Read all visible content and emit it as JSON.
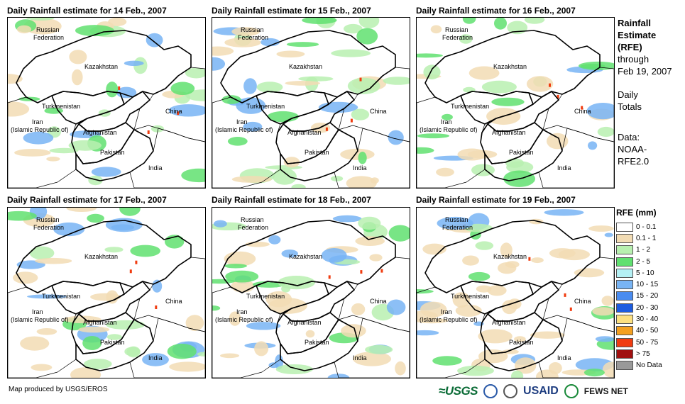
{
  "panels": [
    {
      "title": "Daily Rainfall estimate for 14 Feb., 2007",
      "rain_level": 0.3
    },
    {
      "title": "Daily Rainfall estimate for 15 Feb., 2007",
      "rain_level": 0.4
    },
    {
      "title": "Daily Rainfall estimate for 16 Feb., 2007",
      "rain_level": 0.25
    },
    {
      "title": "Daily Rainfall estimate for 17 Feb., 2007",
      "rain_level": 0.35
    },
    {
      "title": "Daily Rainfall estimate for 18 Feb., 2007",
      "rain_level": 0.45
    },
    {
      "title": "Daily Rainfall estimate for 19 Feb., 2007",
      "rain_level": 0.6
    }
  ],
  "map_labels": {
    "russia1": "Russian",
    "russia2": "Federation",
    "kazakhstan": "Kazakhstan",
    "turkmenistan": "Turkmenistan",
    "iran1": "Iran",
    "iran2": "(Islamic Republic of)",
    "afghanistan": "Afghanistan",
    "pakistan": "Pakistan",
    "china": "China",
    "india": "India"
  },
  "side": {
    "line1": "Rainfall",
    "line2": "Estimate",
    "line3": "(RFE)",
    "line4": "through",
    "line5": "Feb 19, 2007",
    "line6": "Daily",
    "line7": "Totals",
    "line8": "Data:",
    "line9": "NOAA-",
    "line10": "RFE2.0"
  },
  "legend": {
    "title": "RFE (mm)",
    "items": [
      {
        "label": "0 - 0.1",
        "color": "#ffffff"
      },
      {
        "label": "0.1 - 1",
        "color": "#f2dcb4"
      },
      {
        "label": "1 - 2",
        "color": "#b8f0b0"
      },
      {
        "label": "2 - 5",
        "color": "#60e070"
      },
      {
        "label": "5 - 10",
        "color": "#b4f0f4"
      },
      {
        "label": "10 - 15",
        "color": "#78b4f4"
      },
      {
        "label": "15 - 20",
        "color": "#4a8cf0"
      },
      {
        "label": "20 - 30",
        "color": "#1c5ce0"
      },
      {
        "label": "30 - 40",
        "color": "#fce080"
      },
      {
        "label": "40 - 50",
        "color": "#f4a020"
      },
      {
        "label": "50 - 75",
        "color": "#f03c10"
      },
      {
        "label": "> 75",
        "color": "#a01010"
      },
      {
        "label": "No Data",
        "color": "#999999"
      }
    ]
  },
  "credit": "Map produced by USGS/EROS",
  "logos": {
    "usgs": "≈USGS",
    "usaid": "USAID",
    "fews": "FEWS NET"
  },
  "colors": {
    "tan": "#f2dcb4",
    "light_green": "#b8f0b0",
    "green": "#60e070",
    "blue": "#78b4f4",
    "red": "#f03c10"
  }
}
